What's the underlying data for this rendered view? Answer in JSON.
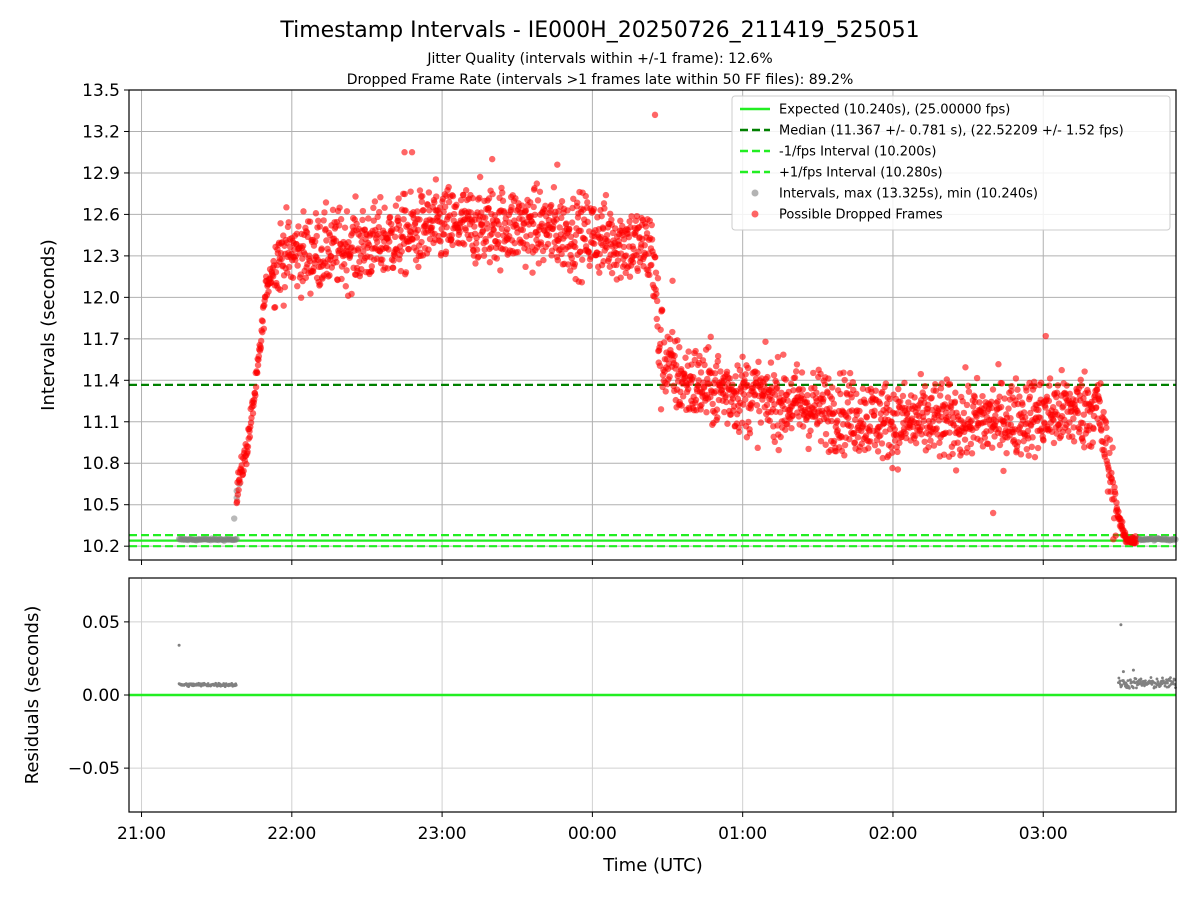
{
  "chart_data": [
    {
      "type": "scatter",
      "title": "Timestamp Intervals - IE000H_20250726_211419_525051",
      "subtitle_lines": [
        "Jitter Quality (intervals within +/-1 frame): 12.6%",
        "Dropped Frame Rate (intervals >1 frames late within 50 FF files): 89.2%"
      ],
      "xlabel": "",
      "ylabel": "Intervals (seconds)",
      "ylim": [
        10.1,
        13.5
      ],
      "yticks": [
        10.2,
        10.5,
        10.8,
        11.1,
        11.4,
        11.7,
        12.0,
        12.3,
        12.6,
        12.9,
        13.2,
        13.5
      ],
      "ytick_labels": [
        "10.2",
        "10.5",
        "10.8",
        "11.1",
        "11.4",
        "11.7",
        "12.0",
        "12.3",
        "12.6",
        "12.9",
        "13.2",
        "13.5"
      ],
      "xlim": [
        "20:55",
        "03:53"
      ],
      "grid": true,
      "legend_position": "upper right",
      "reference_lines": [
        {
          "label": "Expected (10.240s), (25.00000 fps)",
          "y": 10.24,
          "style": "solid",
          "color": "#22ee22"
        },
        {
          "label": "Median (11.367 +/- 0.781 s), (22.52209 +/- 1.52 fps)",
          "y": 11.367,
          "style": "dashed",
          "color": "#008000"
        },
        {
          "label": "-1/fps Interval (10.200s)",
          "y": 10.2,
          "style": "dashed",
          "color": "#22ee22"
        },
        {
          "label": "+1/fps Interval (10.280s)",
          "y": 10.28,
          "style": "dashed",
          "color": "#22ee22"
        }
      ],
      "scatter_series": [
        {
          "label": "Intervals, max (13.325s), min (10.240s)",
          "color": "#808080",
          "segments": [
            {
              "x_start": "21:15",
              "x_end": "21:38",
              "y": 10.248,
              "jitter": 0.006
            },
            {
              "x_start": "03:33",
              "x_end": "03:53",
              "y": 10.25,
              "jitter": 0.008
            }
          ],
          "outliers": [
            {
              "x": "21:37",
              "y": 10.4
            },
            {
              "x": "21:38",
              "y": 10.55
            },
            {
              "x": "21:38",
              "y": 10.6
            },
            {
              "x": "21:39",
              "y": 10.65
            }
          ]
        },
        {
          "label": "Possible Dropped Frames",
          "color": "#ff0000",
          "trend": [
            {
              "x": "21:38",
              "y": 10.6
            },
            {
              "x": "21:42",
              "y": 10.9
            },
            {
              "x": "21:46",
              "y": 11.4
            },
            {
              "x": "21:50",
              "y": 12.1
            },
            {
              "x": "21:55",
              "y": 12.3
            },
            {
              "x": "22:30",
              "y": 12.38
            },
            {
              "x": "23:00",
              "y": 12.52
            },
            {
              "x": "23:30",
              "y": 12.52
            },
            {
              "x": "00:00",
              "y": 12.45
            },
            {
              "x": "00:24",
              "y": 12.35
            },
            {
              "x": "00:27",
              "y": 11.6
            },
            {
              "x": "00:35",
              "y": 11.4
            },
            {
              "x": "01:00",
              "y": 11.3
            },
            {
              "x": "01:30",
              "y": 11.2
            },
            {
              "x": "02:00",
              "y": 11.1
            },
            {
              "x": "02:30",
              "y": 11.1
            },
            {
              "x": "03:00",
              "y": 11.15
            },
            {
              "x": "03:22",
              "y": 11.2
            },
            {
              "x": "03:26",
              "y": 10.8
            },
            {
              "x": "03:29",
              "y": 10.5
            },
            {
              "x": "03:31",
              "y": 10.35
            },
            {
              "x": "03:33",
              "y": 10.25
            },
            {
              "x": "03:37",
              "y": 10.24
            }
          ],
          "spread": 0.14,
          "outliers": [
            {
              "x": "00:25",
              "y": 13.32
            },
            {
              "x": "22:45",
              "y": 13.05
            },
            {
              "x": "22:48",
              "y": 13.05
            },
            {
              "x": "23:20",
              "y": 13.0
            },
            {
              "x": "23:46",
              "y": 12.96
            },
            {
              "x": "00:32",
              "y": 12.12
            },
            {
              "x": "02:40",
              "y": 10.44
            },
            {
              "x": "03:01",
              "y": 11.72
            }
          ]
        }
      ]
    },
    {
      "type": "scatter",
      "title": "",
      "xlabel": "Time (UTC)",
      "ylabel": "Residuals (seconds)",
      "ylim": [
        -0.08,
        0.08
      ],
      "yticks": [
        -0.05,
        0.0,
        0.05
      ],
      "ytick_labels": [
        "−0.05",
        "0.00",
        "0.05"
      ],
      "xlim": [
        "20:55",
        "03:53"
      ],
      "xticks": [
        "21:00",
        "22:00",
        "23:00",
        "00:00",
        "01:00",
        "02:00",
        "03:00"
      ],
      "grid": true,
      "zero_line_color": "#22ee22",
      "scatter_series": [
        {
          "color": "#808080",
          "segments": [
            {
              "x_start": "21:15",
              "x_end": "21:38",
              "y": 0.007,
              "jitter": 0.001
            },
            {
              "x_start": "03:30",
              "x_end": "03:53",
              "y": 0.008,
              "jitter": 0.003
            }
          ],
          "outliers": [
            {
              "x": "21:15",
              "y": 0.034
            },
            {
              "x": "03:31",
              "y": 0.048
            },
            {
              "x": "03:32",
              "y": 0.016
            },
            {
              "x": "03:36",
              "y": 0.017
            }
          ]
        }
      ]
    }
  ]
}
